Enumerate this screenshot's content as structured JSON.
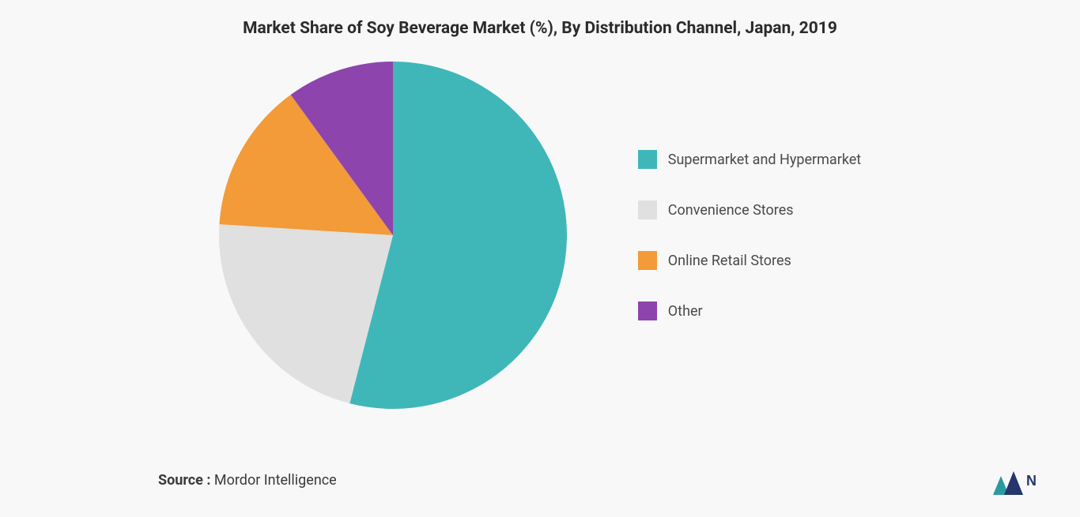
{
  "chart": {
    "type": "pie",
    "title": "Market Share of Soy Beverage Market (%), By Distribution Channel, Japan, 2019",
    "title_fontsize": 21,
    "title_color": "#2b2b2b",
    "background_color": "#f8f8f8",
    "pie_diameter": 440,
    "slices": [
      {
        "label": "Supermarket and Hypermarket",
        "value": 54,
        "color": "#3fb7b9"
      },
      {
        "label": "Convenience Stores",
        "value": 22,
        "color": "#e0e0e0"
      },
      {
        "label": "Online Retail Stores",
        "value": 14,
        "color": "#f29b38"
      },
      {
        "label": "Other",
        "value": 10,
        "color": "#8e44ad"
      }
    ],
    "legend": {
      "position": "right",
      "fontsize": 18,
      "label_color": "#4a4a4a",
      "swatch_size": 24,
      "row_gap": 40
    }
  },
  "source": {
    "label": "Source : ",
    "value": "Mordor Intelligence",
    "fontsize": 18,
    "color": "#3a3a3a"
  },
  "logo": {
    "name": "mordor-logo",
    "bar_colors": [
      "#2b9aa0",
      "#26356b"
    ],
    "text_color": "#26356b"
  }
}
